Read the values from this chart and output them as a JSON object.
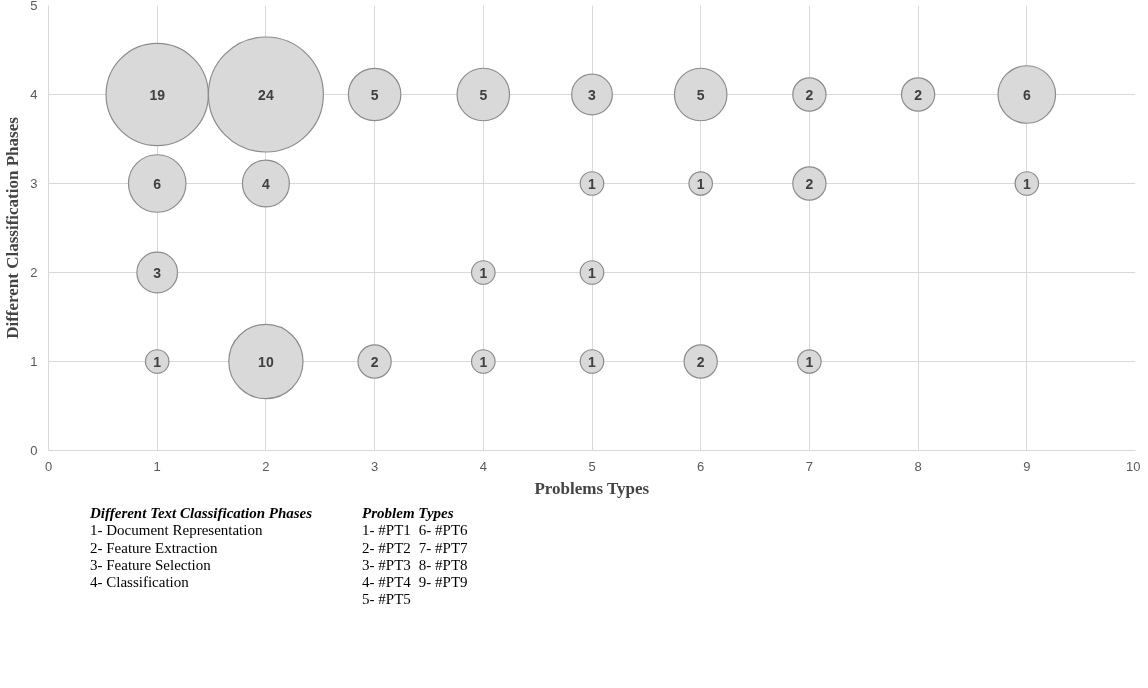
{
  "chart_data": {
    "type": "bubble",
    "xlabel": "Problems Types",
    "ylabel": "Different Classification Phases",
    "xlim": [
      0,
      10
    ],
    "xticks": [
      0,
      1,
      2,
      3,
      4,
      5,
      6,
      7,
      8,
      9,
      10
    ],
    "ylim": [
      0,
      5
    ],
    "yticks": [
      0,
      1,
      2,
      3,
      4,
      5
    ],
    "grid": true,
    "series": [
      {
        "color": "#d9d9d9",
        "x": [
          1,
          2,
          3,
          4,
          5,
          6,
          7,
          8,
          9,
          1,
          2,
          5,
          6,
          7,
          9,
          1,
          4,
          5,
          1,
          2,
          3,
          4,
          5,
          6,
          7
        ],
        "values": [
          4,
          4,
          4,
          4,
          4,
          4,
          4,
          4,
          4,
          3,
          3,
          3,
          3,
          3,
          3,
          2,
          2,
          2,
          1,
          1,
          1,
          1,
          1,
          1,
          1
        ],
        "sizes": [
          19,
          24,
          5,
          5,
          3,
          5,
          2,
          2,
          6,
          6,
          4,
          1,
          1,
          2,
          1,
          3,
          1,
          1,
          1,
          10,
          2,
          1,
          1,
          2,
          1
        ],
        "value_labels": [
          "19",
          "24",
          "5",
          "5",
          "3",
          "5",
          "2",
          "2",
          "6",
          "6",
          "4",
          "1",
          "1",
          "2",
          "1",
          "3",
          "1",
          "1",
          "1",
          "10",
          "2",
          "1",
          "1",
          "2",
          "1"
        ]
      }
    ],
    "annotations": [
      "Different Text Classification Phases",
      "1- Document Representation",
      "2- Feature Extraction",
      "3- Feature Selection",
      "4- Classification",
      "Problem Types",
      "1- #PT1",
      "2- #PT2",
      "3- #PT3",
      "4- #PT4",
      "5- #PT5",
      "6- #PT6",
      "7- #PT7",
      "8- #PT8",
      "9- #PT9"
    ]
  }
}
